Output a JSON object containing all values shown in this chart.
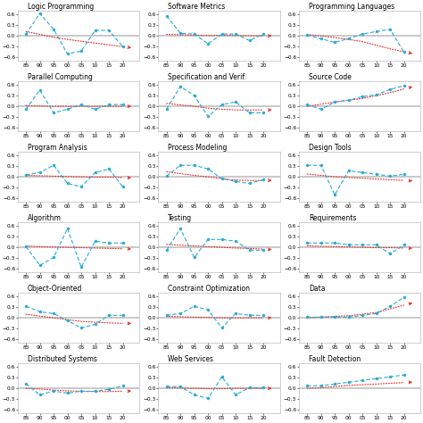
{
  "topics": [
    "Logic Programming",
    "Software Metrics",
    "Programming Languages",
    "Parallel Computing",
    "Specification and Verif.",
    "Source Code",
    "Program Analysis",
    "Process Modeling",
    "Design Tools",
    "Algorithm",
    "Testing",
    "Requirements",
    "Object-Oriented",
    "Constraint Optimization",
    "Data",
    "Distributed Systems",
    "Web Services",
    "Fault Detection"
  ],
  "x_vals": [
    85,
    90,
    95,
    100,
    105,
    110,
    115,
    120
  ],
  "x_tick_labels": [
    "85",
    "90",
    "95",
    "00",
    "05",
    "10",
    "15",
    "20"
  ],
  "ylim": [
    -0.7,
    0.7
  ],
  "yticks": [
    -0.6,
    -0.3,
    0,
    0.3,
    0.6
  ],
  "series": {
    "Logic Programming": [
      0.05,
      0.62,
      0.18,
      -0.5,
      -0.42,
      0.15,
      0.15,
      -0.3
    ],
    "Software Metrics": [
      0.55,
      0.07,
      0.05,
      -0.22,
      0.05,
      0.05,
      -0.13,
      0.05
    ],
    "Programming Languages": [
      0.02,
      -0.08,
      -0.18,
      -0.08,
      0.05,
      0.12,
      0.18,
      -0.45
    ],
    "Parallel Computing": [
      -0.08,
      0.45,
      -0.18,
      -0.08,
      0.05,
      -0.08,
      0.05,
      0.05
    ],
    "Specification and Verif.": [
      -0.08,
      0.55,
      0.3,
      -0.28,
      0.05,
      0.12,
      -0.18,
      -0.18
    ],
    "Source Code": [
      0.05,
      -0.08,
      0.12,
      0.17,
      0.27,
      0.32,
      0.47,
      0.57
    ],
    "Program Analysis": [
      0.05,
      0.12,
      0.32,
      -0.18,
      -0.28,
      0.12,
      0.22,
      -0.28
    ],
    "Process Modeling": [
      0.02,
      0.32,
      0.32,
      0.22,
      -0.05,
      -0.13,
      -0.18,
      -0.08
    ],
    "Design Tools": [
      0.32,
      0.32,
      -0.5,
      0.17,
      0.12,
      0.07,
      0.02,
      0.07
    ],
    "Algorithm": [
      0.02,
      -0.5,
      -0.28,
      0.52,
      -0.55,
      0.17,
      0.12,
      0.12
    ],
    "Testing": [
      -0.08,
      0.52,
      -0.28,
      0.22,
      0.22,
      0.17,
      -0.08,
      -0.08
    ],
    "Requirements": [
      0.12,
      0.12,
      0.12,
      0.07,
      0.07,
      0.07,
      -0.18,
      0.07
    ],
    "Object-Oriented": [
      0.32,
      0.17,
      0.12,
      -0.08,
      -0.28,
      -0.18,
      0.07,
      0.07
    ],
    "Constraint Optimization": [
      0.07,
      0.12,
      0.32,
      0.22,
      -0.28,
      0.12,
      0.07,
      0.07
    ],
    "Data": [
      0.02,
      0.02,
      0.02,
      0.02,
      0.07,
      0.12,
      0.32,
      0.57
    ],
    "Distributed Systems": [
      0.12,
      -0.18,
      -0.08,
      -0.13,
      -0.08,
      -0.08,
      -0.03,
      0.07
    ],
    "Web Services": [
      0.05,
      0.05,
      -0.18,
      -0.28,
      0.32,
      -0.18,
      0.02,
      0.02
    ],
    "Fault Detection": [
      0.07,
      0.07,
      0.12,
      0.17,
      0.22,
      0.27,
      0.32,
      0.37
    ]
  },
  "trend": {
    "Logic Programming": [
      0.12,
      0.04,
      -0.04,
      -0.1,
      -0.15,
      -0.2,
      -0.25,
      -0.3
    ],
    "Software Metrics": [
      0.04,
      0.03,
      0.02,
      0.01,
      0.01,
      0.01,
      0.0,
      0.0
    ],
    "Programming Languages": [
      0.04,
      0.0,
      -0.05,
      -0.1,
      -0.16,
      -0.26,
      -0.36,
      -0.44
    ],
    "Parallel Computing": [
      0.02,
      0.01,
      0.0,
      0.0,
      0.0,
      0.0,
      0.0,
      0.0
    ],
    "Specification and Verif.": [
      0.08,
      0.04,
      0.0,
      -0.05,
      -0.08,
      -0.1,
      -0.1,
      -0.1
    ],
    "Source Code": [
      0.0,
      0.06,
      0.12,
      0.17,
      0.22,
      0.3,
      0.38,
      0.48
    ],
    "Program Analysis": [
      0.04,
      0.03,
      0.02,
      0.01,
      0.0,
      -0.01,
      -0.01,
      -0.02
    ],
    "Process Modeling": [
      0.14,
      0.09,
      0.04,
      0.0,
      -0.05,
      -0.09,
      -0.1,
      -0.1
    ],
    "Design Tools": [
      0.08,
      0.04,
      0.0,
      -0.02,
      -0.04,
      -0.06,
      -0.08,
      -0.1
    ],
    "Algorithm": [
      0.04,
      0.02,
      0.01,
      0.0,
      -0.01,
      -0.02,
      -0.03,
      -0.04
    ],
    "Testing": [
      0.08,
      0.06,
      0.04,
      0.02,
      0.0,
      -0.02,
      -0.03,
      -0.05
    ],
    "Requirements": [
      0.04,
      0.03,
      0.02,
      0.01,
      0.0,
      -0.01,
      -0.01,
      -0.02
    ],
    "Object-Oriented": [
      0.1,
      0.05,
      0.0,
      -0.05,
      -0.1,
      -0.12,
      -0.14,
      -0.15
    ],
    "Constraint Optimization": [
      0.04,
      0.03,
      0.02,
      0.01,
      0.0,
      0.0,
      0.0,
      0.0
    ],
    "Data": [
      0.0,
      0.02,
      0.04,
      0.06,
      0.1,
      0.15,
      0.25,
      0.35
    ],
    "Distributed Systems": [
      0.0,
      -0.02,
      -0.05,
      -0.07,
      -0.08,
      -0.09,
      -0.09,
      -0.08
    ],
    "Web Services": [
      0.02,
      0.01,
      0.0,
      -0.01,
      -0.01,
      0.0,
      0.0,
      0.0
    ],
    "Fault Detection": [
      0.0,
      0.02,
      0.05,
      0.08,
      0.1,
      0.12,
      0.14,
      0.16
    ]
  },
  "line_color": "#29ABD4",
  "trend_color": "#E8302A",
  "nrows": 6,
  "ncols": 3,
  "title_fontsize": 5.5,
  "tick_fontsize": 4.2,
  "ytick_fontsize": 4.2
}
